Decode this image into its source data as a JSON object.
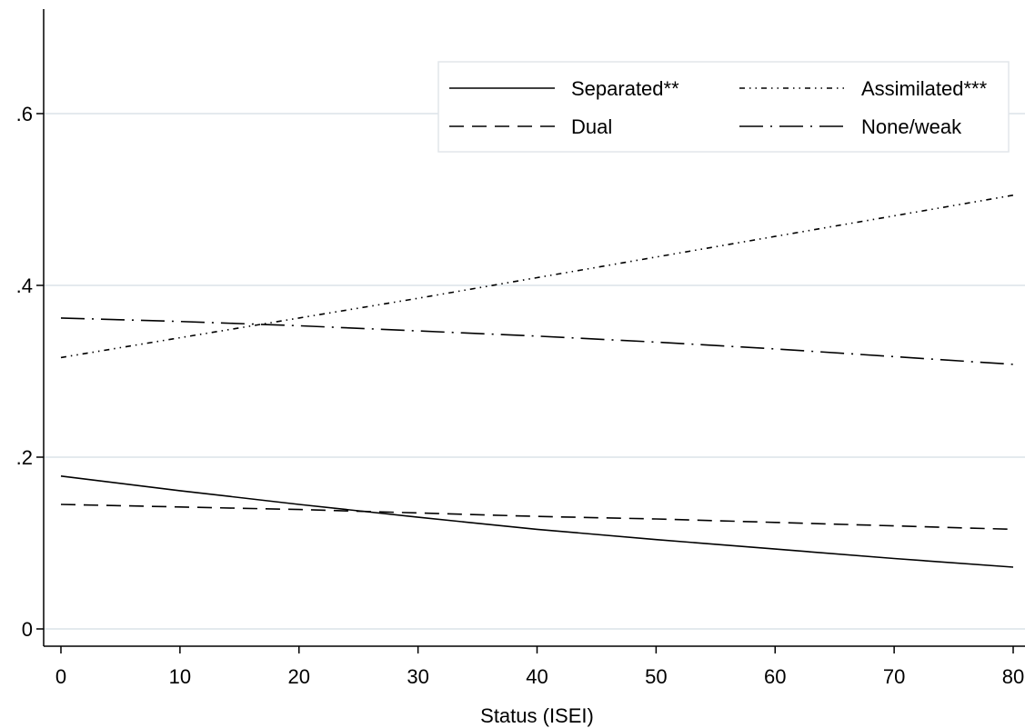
{
  "chart_data": {
    "type": "line",
    "title": "",
    "xlabel": "Status (ISEI)",
    "ylabel": "",
    "xlim": [
      0,
      80
    ],
    "ylim": [
      0,
      0.6
    ],
    "x_ticks": [
      0,
      10,
      20,
      30,
      40,
      50,
      60,
      70,
      80
    ],
    "x_tick_labels": [
      "0",
      "10",
      "20",
      "30",
      "40",
      "50",
      "60",
      "70",
      "80"
    ],
    "y_ticks": [
      0,
      0.2,
      0.4,
      0.6
    ],
    "y_tick_labels": [
      "0",
      ".2",
      ".4",
      ".6"
    ],
    "grid": "horizontal",
    "legend_position": "top-right",
    "series": [
      {
        "name": "Separated**",
        "dash": "solid",
        "x": [
          0,
          10,
          20,
          30,
          40,
          50,
          60,
          70,
          80
        ],
        "values": [
          0.178,
          0.161,
          0.145,
          0.13,
          0.116,
          0.104,
          0.093,
          0.082,
          0.072
        ]
      },
      {
        "name": "Assimilated***",
        "dash": "dash-dot-dot",
        "x": [
          0,
          10,
          20,
          30,
          40,
          50,
          60,
          70,
          80
        ],
        "values": [
          0.316,
          0.339,
          0.362,
          0.385,
          0.409,
          0.433,
          0.457,
          0.481,
          0.505
        ]
      },
      {
        "name": "Dual",
        "dash": "dashed",
        "x": [
          0,
          10,
          20,
          30,
          40,
          50,
          60,
          70,
          80
        ],
        "values": [
          0.145,
          0.142,
          0.139,
          0.135,
          0.131,
          0.128,
          0.124,
          0.12,
          0.116
        ]
      },
      {
        "name": "None/weak",
        "dash": "long-dash-dot",
        "x": [
          0,
          10,
          20,
          30,
          40,
          50,
          60,
          70,
          80
        ],
        "values": [
          0.362,
          0.358,
          0.353,
          0.347,
          0.341,
          0.334,
          0.326,
          0.317,
          0.308
        ]
      }
    ]
  }
}
